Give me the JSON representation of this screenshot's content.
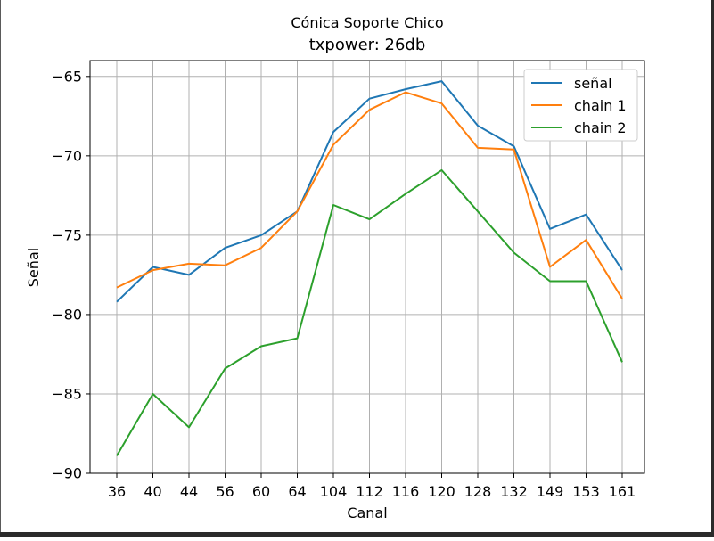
{
  "chart_data": {
    "type": "line",
    "title": "Cónica Soporte Chico",
    "subtitle": "txpower: 26db",
    "xlabel": "Canal",
    "ylabel": "Señal",
    "categories": [
      "36",
      "40",
      "44",
      "56",
      "60",
      "64",
      "104",
      "112",
      "116",
      "120",
      "128",
      "132",
      "149",
      "153",
      "161"
    ],
    "ylim": [
      -90,
      -64.0
    ],
    "yticks": [
      -65,
      -70,
      -75,
      -80,
      -85,
      -90
    ],
    "ytick_labels": [
      "−65",
      "−70",
      "−75",
      "−80",
      "−85",
      "−90"
    ],
    "grid": true,
    "legend_position": "top-right",
    "series": [
      {
        "name": "señal",
        "color": "#1f77b4",
        "values": [
          -79.2,
          -77.0,
          -77.5,
          -75.8,
          -75.0,
          -73.5,
          -68.5,
          -66.4,
          -65.8,
          -65.3,
          -68.1,
          -69.4,
          -74.6,
          -73.7,
          -77.2
        ]
      },
      {
        "name": "chain 1",
        "color": "#ff7f0e",
        "values": [
          -78.3,
          -77.2,
          -76.8,
          -76.9,
          -75.8,
          -73.5,
          -69.3,
          -67.1,
          -66.0,
          -66.7,
          -69.5,
          -69.6,
          -77.0,
          -75.3,
          -79.0
        ]
      },
      {
        "name": "chain 2",
        "color": "#2ca02c",
        "values": [
          -88.9,
          -85.0,
          -87.1,
          -83.4,
          -82.0,
          -81.5,
          -73.1,
          -74.0,
          -72.4,
          -70.9,
          -73.5,
          -76.1,
          -77.9,
          -77.9,
          -83.0
        ]
      }
    ]
  }
}
